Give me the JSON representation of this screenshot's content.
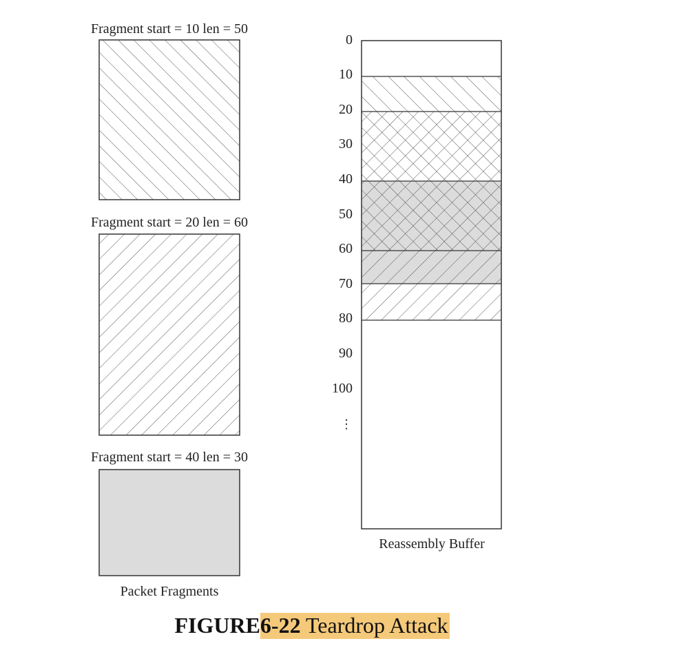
{
  "figure": {
    "word": "FIGURE",
    "number": "6-22",
    "title": "Teardrop Attack",
    "highlight_color": "#f5c97a"
  },
  "fragments": [
    {
      "label": "Fragment start = 10 len = 50",
      "start": 10,
      "len": 50,
      "pattern": "backslash-hatch"
    },
    {
      "label": "Fragment start = 20 len = 60",
      "start": 20,
      "len": 60,
      "pattern": "slash-hatch"
    },
    {
      "label": "Fragment start = 40 len = 30",
      "start": 40,
      "len": 30,
      "pattern": "gray-fill"
    }
  ],
  "fragments_caption": "Packet Fragments",
  "buffer": {
    "caption": "Reassembly Buffer",
    "ticks": [
      "0",
      "10",
      "20",
      "30",
      "40",
      "50",
      "60",
      "70",
      "80",
      "90",
      "100"
    ],
    "ellipsis": "⋮",
    "segments": [
      {
        "from": 10,
        "to": 20,
        "pattern": "backslash-hatch"
      },
      {
        "from": 20,
        "to": 40,
        "pattern": "cross-hatch"
      },
      {
        "from": 40,
        "to": 60,
        "pattern": "gray-cross-hatch"
      },
      {
        "from": 60,
        "to": 70,
        "pattern": "gray-slash-hatch"
      },
      {
        "from": 70,
        "to": 80,
        "pattern": "slash-hatch"
      }
    ]
  },
  "colors": {
    "line": "#333333",
    "hatch": "#555555",
    "gray_fill": "#dcdcdc"
  }
}
